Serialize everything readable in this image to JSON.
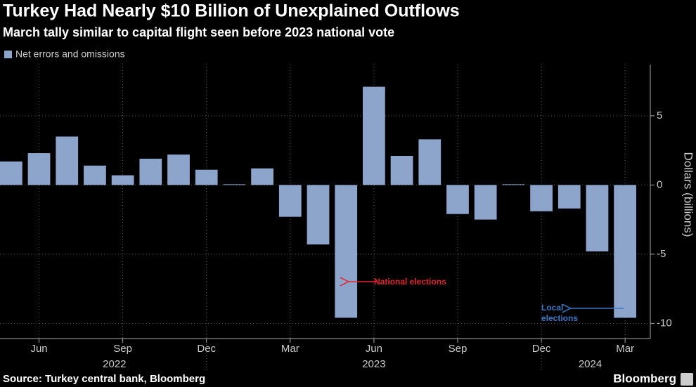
{
  "chart_data": {
    "type": "bar",
    "title": "Turkey Had Nearly $10 Billion of Unexplained Outflows",
    "subtitle": "March tally similar to capital flight seen before 2023 national vote",
    "y_label": "Dollars (billions)",
    "source": "Source: Turkey central bank, Bloomberg",
    "brand": "Bloomberg",
    "categories": [
      null,
      "Jun",
      null,
      null,
      "Sep",
      null,
      null,
      "Dec",
      null,
      null,
      "Mar",
      null,
      null,
      "Jun",
      null,
      null,
      "Sep",
      null,
      null,
      "Dec",
      null,
      null,
      "Mar"
    ],
    "years": [
      "2022",
      "2023",
      "2024"
    ],
    "series": [
      {
        "name": "Net errors and omissions",
        "color": "#8da4cb",
        "values": [
          1.7,
          2.3,
          3.5,
          1.4,
          0.7,
          1.9,
          2.2,
          1.1,
          0.05,
          1.2,
          -2.3,
          -4.3,
          -9.6,
          7.1,
          2.1,
          3.3,
          -2.1,
          -2.5,
          0.05,
          -1.9,
          -1.7,
          -4.8,
          -9.6
        ]
      }
    ],
    "ylim": [
      -11.1,
      8.7
    ],
    "yticks": [
      -10,
      -5,
      0,
      5
    ],
    "grid": true,
    "annotations": [
      {
        "text": "National elections",
        "color": "#e0242c"
      },
      {
        "text": "Local elections",
        "color": "#3b78c4"
      }
    ]
  }
}
